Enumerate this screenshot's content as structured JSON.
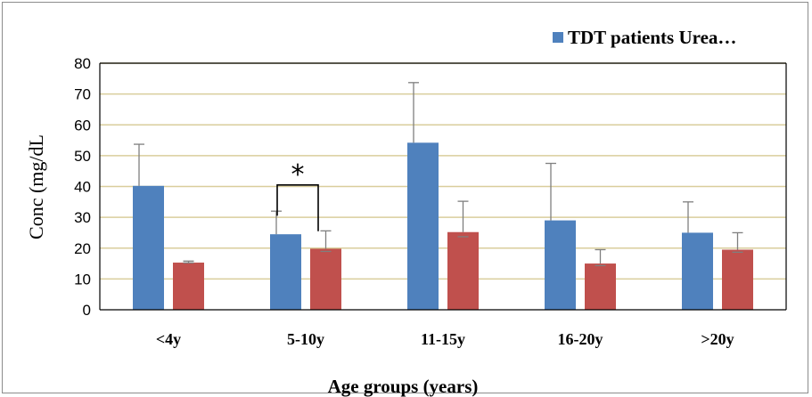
{
  "chart_data": {
    "type": "bar",
    "title": "",
    "xlabel": "Age groups (years)",
    "ylabel": "Conc (mg/dL",
    "ylim": [
      0,
      80
    ],
    "yticks": [
      0,
      10,
      20,
      30,
      40,
      50,
      60,
      70,
      80
    ],
    "grid": true,
    "legend_position": "top-right",
    "categories": [
      "<4y",
      "5-10y",
      "11-15y",
      "16-20y",
      ">20y"
    ],
    "series": [
      {
        "name": "TDT patients Urea…",
        "color": "#4f81bd",
        "values": [
          40.2,
          24.5,
          54.2,
          29,
          25
        ],
        "errors": [
          13.5,
          7.5,
          19.5,
          18.5,
          10
        ]
      },
      {
        "name": "",
        "color": "#c0504d",
        "values": [
          15.3,
          19.8,
          25.2,
          15,
          19.5
        ],
        "errors": [
          0.5,
          5.8,
          10,
          4.5,
          5.5
        ]
      }
    ],
    "annotations": [
      {
        "text": "*",
        "category": "5-10y",
        "type": "significance-bracket"
      }
    ]
  }
}
